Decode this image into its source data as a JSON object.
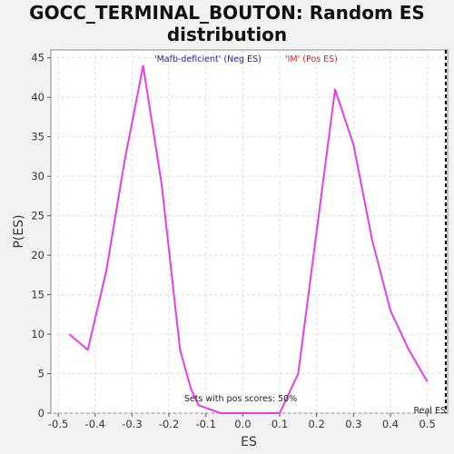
{
  "chart_data": {
    "type": "line",
    "title_line1": "GOCC_TERMINAL_BOUTON: Random ES",
    "title_line2": "distribution",
    "xlabel": "ES",
    "ylabel": "P(ES)",
    "xlim": [
      -0.52,
      0.555
    ],
    "ylim": [
      0,
      46
    ],
    "x_ticks": [
      -0.5,
      -0.4,
      -0.3,
      -0.2,
      -0.1,
      0.0,
      0.1,
      0.2,
      0.3,
      0.4,
      0.5
    ],
    "x_tick_labels": [
      "-0.5",
      "-0.4",
      "-0.3",
      "-0.2",
      "-0.1",
      "0.0",
      "0.1",
      "0.2",
      "0.3",
      "0.4",
      "0.5"
    ],
    "y_ticks": [
      0,
      5,
      10,
      15,
      20,
      25,
      30,
      35,
      40,
      45
    ],
    "grid": true,
    "legend": {
      "neg_label": "'Mafb-deficient' (Neg ES)",
      "neg_color": "#2222bb",
      "pos_label": "'IM' (Pos ES)",
      "pos_color": "#dd2222",
      "placement": "top-center"
    },
    "annotation": "Sets with pos scores: 50%",
    "real_es_label": "Real ES",
    "real_es": 0.55,
    "series": [
      {
        "color": "#e83de8",
        "x": [
          -0.47,
          -0.42,
          -0.37,
          -0.32,
          -0.27,
          -0.22,
          -0.17,
          -0.14,
          -0.12,
          -0.06,
          0.0,
          0.05,
          0.1,
          0.15,
          0.2,
          0.25,
          0.3,
          0.35,
          0.4,
          0.45,
          0.5
        ],
        "y": [
          10,
          8,
          18,
          32,
          44,
          29,
          8,
          3,
          1,
          0,
          0,
          0,
          0,
          5,
          23,
          41,
          34,
          22,
          13,
          8,
          4
        ]
      }
    ]
  }
}
